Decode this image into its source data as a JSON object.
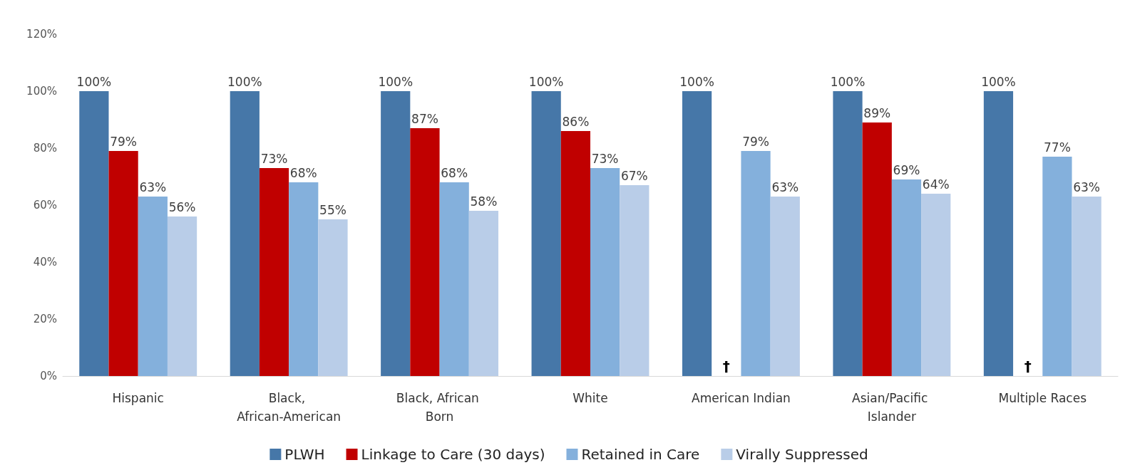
{
  "chart_data": {
    "type": "bar",
    "categories": [
      "Hispanic",
      "Black, African-American",
      "Black, African Born",
      "White",
      "American Indian",
      "Asian/Pacific Islander",
      "Multiple Races"
    ],
    "series": [
      {
        "name": "PLWH",
        "color": "#4677a8",
        "values": [
          100,
          100,
          100,
          100,
          100,
          100,
          100
        ],
        "value_labels": [
          "100%",
          "100%",
          "100%",
          "100%",
          "100%",
          "100%",
          "100%"
        ]
      },
      {
        "name": "Linkage to Care (30 days)",
        "color": "#c00000",
        "values": [
          79,
          73,
          87,
          86,
          null,
          89,
          null
        ],
        "value_labels": [
          "79%",
          "73%",
          "87%",
          "86%",
          null,
          "89%",
          null
        ]
      },
      {
        "name": "Retained in Care",
        "color": "#84b0dc",
        "values": [
          63,
          68,
          68,
          73,
          79,
          69,
          77
        ],
        "value_labels": [
          "63%",
          "68%",
          "68%",
          "73%",
          "79%",
          "69%",
          "77%"
        ]
      },
      {
        "name": "Virally Suppressed",
        "color": "#b9cde8",
        "values": [
          56,
          55,
          58,
          67,
          63,
          64,
          63
        ],
        "value_labels": [
          "56%",
          "55%",
          "58%",
          "67%",
          "63%",
          "64%",
          "63%"
        ]
      }
    ],
    "ylim": [
      0,
      120
    ],
    "yticks": [
      {
        "value": 0,
        "label": "0%"
      },
      {
        "value": 20,
        "label": "20%"
      },
      {
        "value": 40,
        "label": "40%"
      },
      {
        "value": 60,
        "label": "60%"
      },
      {
        "value": 80,
        "label": "80%"
      },
      {
        "value": 100,
        "label": "100%"
      },
      {
        "value": 120,
        "label": "120%"
      }
    ],
    "annotations": [
      {
        "text": "†",
        "x": "American Indian",
        "y": 0
      },
      {
        "text": "†",
        "x": "Multiple Races",
        "y": 0
      }
    ],
    "grid": false,
    "legend": "bottom"
  }
}
